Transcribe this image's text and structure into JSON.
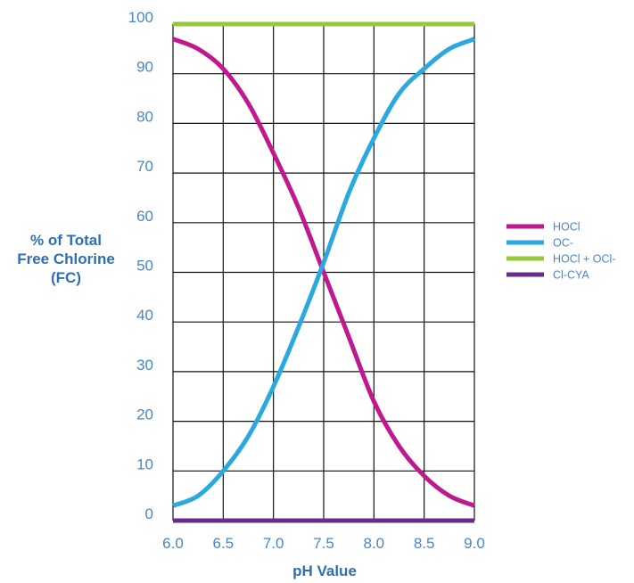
{
  "chart_data": {
    "type": "line",
    "title": "",
    "xlabel": "pH Value",
    "ylabel_lines": [
      "% of Total",
      "Free Chlorine",
      "(FC)"
    ],
    "xlim": [
      6.0,
      9.0
    ],
    "ylim": [
      0,
      100
    ],
    "x_ticks": [
      "6.0",
      "6.5",
      "7.0",
      "7.5",
      "8.0",
      "8.5",
      "9.0"
    ],
    "y_ticks": [
      "0",
      "10",
      "20",
      "30",
      "40",
      "50",
      "60",
      "70",
      "80",
      "90",
      "100"
    ],
    "grid": true,
    "legend_position": "right",
    "x": [
      6.0,
      6.25,
      6.5,
      6.75,
      7.0,
      7.25,
      7.5,
      7.75,
      8.0,
      8.25,
      8.5,
      8.75,
      9.0
    ],
    "series": [
      {
        "name": "HOCl",
        "color": "#c0198f",
        "values": [
          97,
          95,
          91,
          84,
          74,
          63,
          50,
          37,
          24,
          15,
          9,
          5,
          3
        ]
      },
      {
        "name": "OC-",
        "color": "#2aa9e0",
        "values": [
          3,
          5,
          10,
          17,
          27,
          39,
          52,
          66,
          77,
          86,
          91,
          95,
          97
        ]
      },
      {
        "name": "HOCl + OCl-",
        "color": "#96c83c",
        "values": [
          100,
          100,
          100,
          100,
          100,
          100,
          100,
          100,
          100,
          100,
          100,
          100,
          100
        ]
      },
      {
        "name": "Cl-CYA",
        "color": "#6a2c8c",
        "values": [
          0,
          0,
          0,
          0,
          0,
          0,
          0,
          0,
          0,
          0,
          0,
          0,
          0
        ]
      }
    ]
  }
}
